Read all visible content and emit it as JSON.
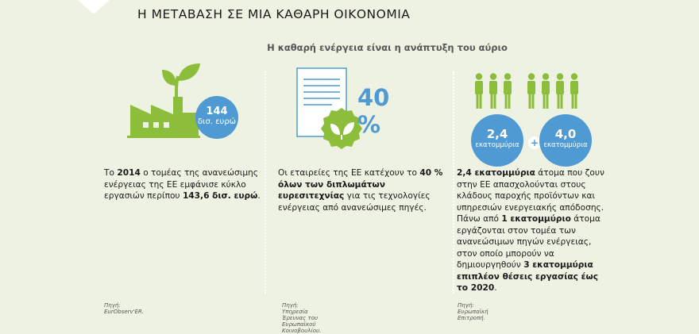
{
  "header": {
    "title": "Η ΜΕΤΑΒΑΣΗ ΣΕ ΜΙΑ ΚΑΘΑΡΗ ΟΙΚΟΝΟΜΙΑ",
    "subtitle": "Η καθαρή ενέργεια είναι η ανάπτυξη του αύριο"
  },
  "colors": {
    "accent_green": "#8cbe3c",
    "accent_blue": "#4f9ad3",
    "background": "#eef2e2"
  },
  "col1": {
    "icon": "factory-with-sprout-icon",
    "badge_number": "144",
    "badge_unit": "δισ. ευρώ",
    "text": {
      "t1": "Το ",
      "b1": "2014",
      "t2": " ο τομέας της ανανεώσιμης ενέργειας της ΕΕ εμφάνισε κύκλο εργασιών περίπου ",
      "b2": "143,6 δισ. ευρώ",
      "t3": "."
    },
    "source": "Πηγή: EurObserv'ER."
  },
  "col2": {
    "icon": "document-with-leaf-icon",
    "percent": "40 %",
    "text": {
      "t1": "Οι εταιρείες της ΕΕ κατέχουν το ",
      "b1": "40 % όλων των διπλωμάτων ευρεσιτεχνίας",
      "t2": " για τις τεχνολογίες ενέργειας από ανανεώσιμες πηγές."
    },
    "source": "Πηγή: Υπηρεσία Έρευνας του Ευρωπαϊκού Κοινοβουλίου."
  },
  "col3": {
    "icon": "people-group-icon",
    "badge1_number": "2,4",
    "badge1_unit": "εκατομμύρια",
    "plus": "+",
    "badge2_number": "4,0",
    "badge2_unit": "εκατομμύρια",
    "text": {
      "b1": "2,4 εκατομμύρια",
      "t1": " άτομα που ζουν στην ΕΕ απασχολούνται στους κλάδους παροχής προϊόντων και υπηρεσιών ενεργειακής απόδοσης. Πάνω από ",
      "b2": "1 εκατομμύριο",
      "t2": " άτομα εργάζονται στον τομέα των ανανεώσιμων πηγών ενέργειας, στον οποίο μπορούν να δημιουργηθούν ",
      "b3": "3 εκατομμύρια επιπλέον θέσεις εργασίας έως το 2020",
      "t3": "."
    },
    "source": "Πηγή: Ευρωπαϊκή Επιτροπή."
  }
}
